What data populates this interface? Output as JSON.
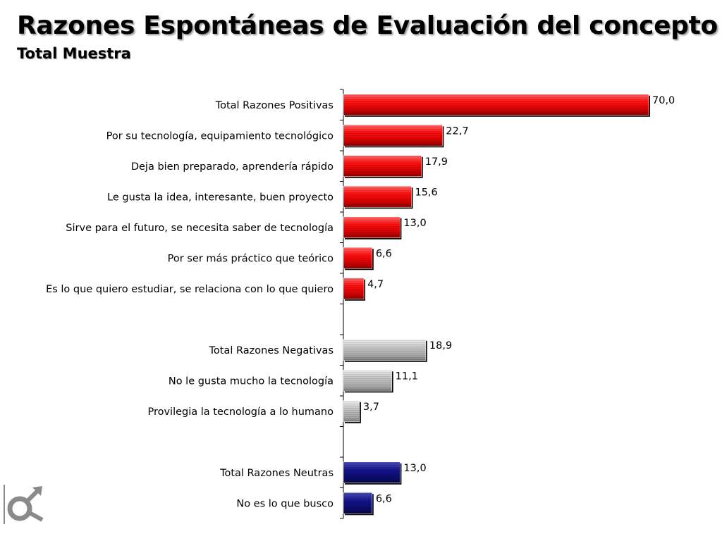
{
  "title": "Razones Espontáneas de Evaluación del concepto",
  "subtitle": "Total Muestra",
  "colors": {
    "positive": "#e8000a",
    "negative": "#b4b4b4",
    "neutral": "#0c0c78",
    "logo": "#8a8a8a"
  },
  "logo_icon": "gender-symbol-logo-icon",
  "chart_data": {
    "type": "bar",
    "orientation": "horizontal",
    "title": "Razones Espontáneas de Evaluación del concepto",
    "subtitle": "Total Muestra",
    "xlim": [
      0,
      70
    ],
    "grid": false,
    "legend": "none",
    "categories": [
      "Total Razones Positivas",
      "Por su tecnología, equipamiento tecnológico",
      "Deja bien preparado, aprendería rápido",
      "Le gusta la idea, interesante, buen proyecto",
      "Sirve para el futuro, se necesita saber de tecnología",
      "Por ser más práctico que teórico",
      "Es lo que quiero estudiar, se relaciona con lo que quiero",
      "",
      "Total Razones Negativas",
      "No le gusta  mucho la tecnología",
      "Provilegia la tecnología a lo humano",
      "",
      "Total Razones Neutras",
      "No es lo que busco"
    ],
    "values": [
      70.0,
      22.7,
      17.9,
      15.6,
      13.0,
      6.6,
      4.7,
      null,
      18.9,
      11.1,
      3.7,
      null,
      13.0,
      6.6
    ],
    "value_labels": [
      "70,0",
      "22,7",
      "17,9",
      "15,6",
      "13,0",
      "6,6",
      "4,7",
      "",
      "18,9",
      "11,1",
      "3,7",
      "",
      "13,0",
      "6,6"
    ],
    "groups": [
      "positive",
      "positive",
      "positive",
      "positive",
      "positive",
      "positive",
      "positive",
      "",
      "negative",
      "negative",
      "negative",
      "",
      "neutral",
      "neutral"
    ]
  }
}
